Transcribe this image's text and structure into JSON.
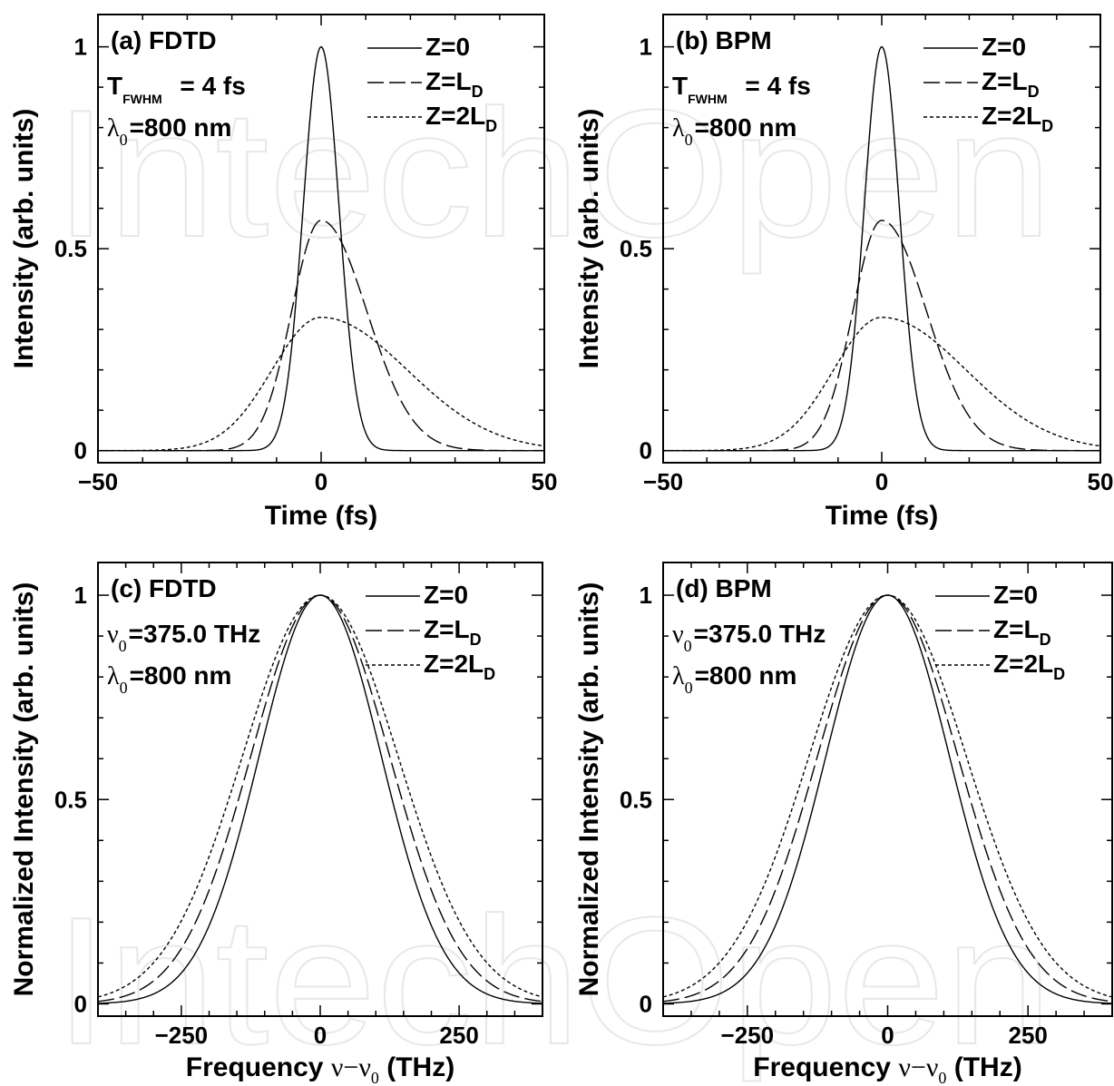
{
  "watermark": "IntechOpen",
  "chart_data": [
    {
      "type": "line",
      "panel": "a",
      "title": "(a) FDTD",
      "annotations": [
        {
          "main": "T",
          "sub": "FWHM",
          "rest": "= 4 fs"
        },
        {
          "greek": "λ",
          "sub": "0",
          "rest": "=800 nm"
        }
      ],
      "xlabel": "Time (fs)",
      "ylabel": "Intensity (arb. units)",
      "xlim": [
        -50,
        50
      ],
      "ylim": [
        -0.03,
        1.08
      ],
      "xticks": [
        -50,
        0,
        50
      ],
      "xtick_labels": [
        "−50",
        "0",
        "50"
      ],
      "yticks": [
        0,
        0.5,
        1
      ],
      "ytick_labels": [
        "0",
        "0.5",
        "1"
      ],
      "legend_position": "top-right",
      "series": [
        {
          "name": "Z=0",
          "legend_main": "Z=0",
          "legend_sub": "",
          "style": "solid",
          "model": "gauss",
          "amp": 1.0,
          "center": 0,
          "width": 4.0,
          "skew": 0
        },
        {
          "name": "Z=LD",
          "legend_main": "Z=L",
          "legend_sub": "D",
          "style": "dashed",
          "model": "gauss",
          "amp": 0.57,
          "center": 0,
          "width": 6.6,
          "skew": 0.55
        },
        {
          "name": "Z=2LD",
          "legend_main": "Z=2L",
          "legend_sub": "D",
          "style": "dotted",
          "model": "gauss",
          "amp": 0.33,
          "center": 0,
          "width": 11.0,
          "skew": 0.75
        }
      ]
    },
    {
      "type": "line",
      "panel": "b",
      "title": "(b)  BPM",
      "annotations": [
        {
          "main": "T",
          "sub": "FWHM",
          "rest": "= 4 fs"
        },
        {
          "greek": "λ",
          "sub": "0",
          "rest": "=800 nm"
        }
      ],
      "xlabel": "Time (fs)",
      "ylabel": "Intensity (arb. units)",
      "xlim": [
        -50,
        50
      ],
      "ylim": [
        -0.03,
        1.08
      ],
      "xticks": [
        -50,
        0,
        50
      ],
      "xtick_labels": [
        "−50",
        "0",
        "50"
      ],
      "yticks": [
        0,
        0.5,
        1
      ],
      "ytick_labels": [
        "0",
        "0.5",
        "1"
      ],
      "legend_position": "top-right",
      "series": [
        {
          "name": "Z=0",
          "legend_main": "Z=0",
          "legend_sub": "",
          "style": "solid",
          "model": "gauss",
          "amp": 1.0,
          "center": 0,
          "width": 4.0,
          "skew": 0
        },
        {
          "name": "Z=LD",
          "legend_main": "Z=L",
          "legend_sub": "D",
          "style": "dashed",
          "model": "gauss",
          "amp": 0.57,
          "center": 0,
          "width": 6.6,
          "skew": 0.55
        },
        {
          "name": "Z=2LD",
          "legend_main": "Z=2L",
          "legend_sub": "D",
          "style": "dotted",
          "model": "gauss",
          "amp": 0.33,
          "center": 0,
          "width": 11.0,
          "skew": 0.75
        }
      ]
    },
    {
      "type": "line",
      "panel": "c",
      "title": "(c)  FDTD",
      "annotations": [
        {
          "greek": "ν",
          "sub": "0",
          "rest": "=375.0 THz"
        },
        {
          "greek": "λ",
          "sub": "0",
          "rest": "=800 nm"
        }
      ],
      "xlabel_main": "Frequency",
      "xlabel_greek": "ν−ν",
      "xlabel_sub": "0",
      "xlabel_units": "(THz)",
      "ylabel": "Normalized Intensity (arb. units)",
      "xlim": [
        -400,
        400
      ],
      "ylim": [
        -0.03,
        1.08
      ],
      "xticks": [
        -250,
        0,
        250
      ],
      "xtick_labels": [
        "−250",
        "0",
        "250"
      ],
      "yticks": [
        0,
        0.5,
        1
      ],
      "ytick_labels": [
        "0",
        "0.5",
        "1"
      ],
      "legend_position": "top-right",
      "series": [
        {
          "name": "Z=0",
          "legend_main": "Z=0",
          "legend_sub": "",
          "style": "solid",
          "model": "gauss",
          "amp": 1.0,
          "center": 0,
          "width": 110,
          "skew": 0
        },
        {
          "name": "Z=LD",
          "legend_main": "Z=L",
          "legend_sub": "D",
          "style": "dashed",
          "model": "gauss",
          "amp": 1.0,
          "center": 0,
          "width": 125,
          "skew": 0
        },
        {
          "name": "Z=2LD",
          "legend_main": "Z=2L",
          "legend_sub": "D",
          "style": "dotted",
          "model": "gauss",
          "amp": 1.0,
          "center": 0,
          "width": 140,
          "skew": 0
        }
      ]
    },
    {
      "type": "line",
      "panel": "d",
      "title": "(d)  BPM",
      "annotations": [
        {
          "greek": "ν",
          "sub": "0",
          "rest": "=375.0 THz"
        },
        {
          "greek": "λ",
          "sub": "0",
          "rest": "=800 nm"
        }
      ],
      "xlabel_main": "Frequency",
      "xlabel_greek": "ν−ν",
      "xlabel_sub": "0",
      "xlabel_units": "(THz)",
      "ylabel": "Normalized Intensity (arb. units)",
      "xlim": [
        -400,
        400
      ],
      "ylim": [
        -0.03,
        1.08
      ],
      "xticks": [
        -250,
        0,
        250
      ],
      "xtick_labels": [
        "−250",
        "0",
        "250"
      ],
      "yticks": [
        0,
        0.5,
        1
      ],
      "ytick_labels": [
        "0",
        "0.5",
        "1"
      ],
      "legend_position": "top-right",
      "series": [
        {
          "name": "Z=0",
          "legend_main": "Z=0",
          "legend_sub": "",
          "style": "solid",
          "model": "gauss",
          "amp": 1.0,
          "center": 0,
          "width": 110,
          "skew": 0
        },
        {
          "name": "Z=LD",
          "legend_main": "Z=L",
          "legend_sub": "D",
          "style": "dashed",
          "model": "gauss",
          "amp": 1.0,
          "center": 0,
          "width": 125,
          "skew": 0
        },
        {
          "name": "Z=2LD",
          "legend_main": "Z=2L",
          "legend_sub": "D",
          "style": "dotted",
          "model": "gauss",
          "amp": 1.0,
          "center": 0,
          "width": 140,
          "skew": 0
        }
      ]
    }
  ]
}
